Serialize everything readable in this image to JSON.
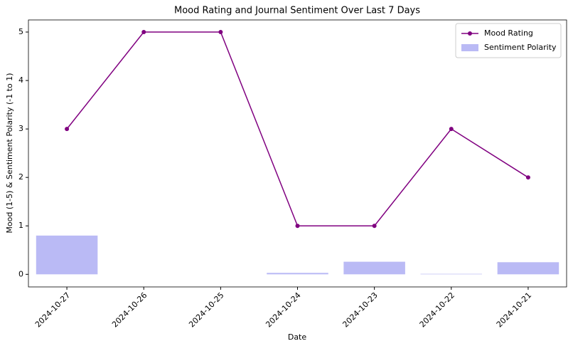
{
  "chart_data": {
    "type": "line",
    "title": "Mood Rating and Journal Sentiment Over Last 7 Days",
    "x_label": "Date",
    "y_label": "Mood (1-5) & Sentiment Polarity (-1 to 1)",
    "categories": [
      "2024-10-27",
      "2024-10-26",
      "2024-10-25",
      "2024-10-24",
      "2024-10-23",
      "2024-10-22",
      "2024-10-21"
    ],
    "series": [
      {
        "name": "Mood Rating",
        "type": "line",
        "color": "#800080",
        "values": [
          3,
          5,
          5,
          1,
          1,
          3,
          2
        ]
      },
      {
        "name": "Sentiment Polarity",
        "type": "bar",
        "color": "#babaf5",
        "values": [
          0.8,
          0,
          0,
          0.03,
          0.26,
          0.01,
          0.25
        ]
      }
    ],
    "ylim": [
      -0.26,
      5.25
    ],
    "yticks": [
      0,
      1,
      2,
      3,
      4,
      5
    ],
    "grid": false,
    "legend": "upper-right"
  }
}
